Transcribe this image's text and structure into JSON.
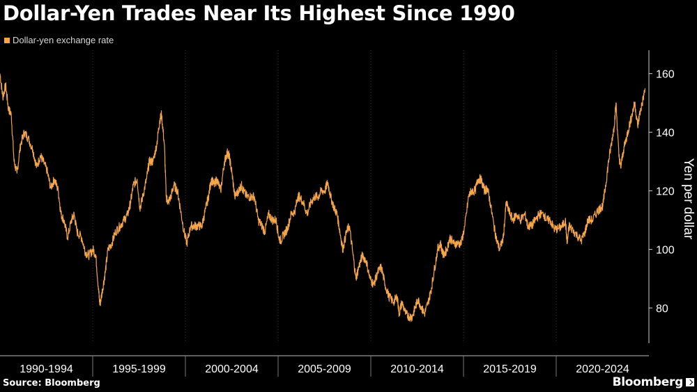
{
  "title": "Dollar-Yen Trades Near Its Highest Since 1990",
  "legend": {
    "label": "Dollar-yen exchange rate"
  },
  "source": "Source: Bloomberg",
  "brand": "Bloomberg",
  "colors": {
    "series": "#f5a54a",
    "background": "#000000",
    "grid": "#3a3a3a",
    "axis_text": "#ffffff"
  },
  "chart_data": {
    "type": "line",
    "ylabel": "Yen per dollar",
    "xlabel": "",
    "ylim": [
      68,
      168
    ],
    "yticks": [
      80,
      100,
      120,
      140,
      160
    ],
    "xlim": [
      1990.0,
      2024.55
    ],
    "x_categories": [
      "1990-1994",
      "1995-1999",
      "2000-2004",
      "2005-2009",
      "2010-2014",
      "2015-2019",
      "2020-2024"
    ],
    "legend_position": "top-left",
    "grid": "vertical dotted",
    "series": [
      {
        "name": "Dollar-yen exchange rate",
        "points": [
          [
            1990.0,
            160
          ],
          [
            1990.15,
            152
          ],
          [
            1990.3,
            156
          ],
          [
            1990.45,
            148
          ],
          [
            1990.6,
            146
          ],
          [
            1990.75,
            130
          ],
          [
            1990.9,
            126
          ],
          [
            1991.1,
            136
          ],
          [
            1991.3,
            140
          ],
          [
            1991.5,
            138
          ],
          [
            1991.75,
            134
          ],
          [
            1991.95,
            128
          ],
          [
            1992.15,
            132
          ],
          [
            1992.3,
            130
          ],
          [
            1992.5,
            127
          ],
          [
            1992.7,
            121
          ],
          [
            1992.9,
            124
          ],
          [
            1993.1,
            120
          ],
          [
            1993.25,
            112
          ],
          [
            1993.4,
            110
          ],
          [
            1993.6,
            104
          ],
          [
            1993.8,
            110
          ],
          [
            1993.95,
            112
          ],
          [
            1994.1,
            106
          ],
          [
            1994.35,
            104
          ],
          [
            1994.55,
            99
          ],
          [
            1994.75,
            98
          ],
          [
            1994.95,
            100
          ],
          [
            1995.1,
            98
          ],
          [
            1995.25,
            86
          ],
          [
            1995.32,
            81
          ],
          [
            1995.45,
            86
          ],
          [
            1995.6,
            92
          ],
          [
            1995.75,
            100
          ],
          [
            1995.95,
            102
          ],
          [
            1996.15,
            106
          ],
          [
            1996.4,
            108
          ],
          [
            1996.6,
            110
          ],
          [
            1996.8,
            112
          ],
          [
            1996.95,
            116
          ],
          [
            1997.1,
            122
          ],
          [
            1997.3,
            124
          ],
          [
            1997.45,
            114
          ],
          [
            1997.6,
            118
          ],
          [
            1997.8,
            124
          ],
          [
            1997.95,
            130
          ],
          [
            1998.15,
            130
          ],
          [
            1998.35,
            136
          ],
          [
            1998.5,
            144
          ],
          [
            1998.6,
            146
          ],
          [
            1998.75,
            136
          ],
          [
            1998.85,
            118
          ],
          [
            1998.95,
            116
          ],
          [
            1999.1,
            118
          ],
          [
            1999.25,
            122
          ],
          [
            1999.45,
            120
          ],
          [
            1999.6,
            114
          ],
          [
            1999.8,
            106
          ],
          [
            1999.95,
            102
          ],
          [
            2000.15,
            108
          ],
          [
            2000.35,
            108
          ],
          [
            2000.55,
            108
          ],
          [
            2000.75,
            108
          ],
          [
            2000.95,
            114
          ],
          [
            2001.1,
            118
          ],
          [
            2001.25,
            124
          ],
          [
            2001.4,
            122
          ],
          [
            2001.55,
            124
          ],
          [
            2001.75,
            120
          ],
          [
            2001.95,
            130
          ],
          [
            2002.1,
            133
          ],
          [
            2002.2,
            132
          ],
          [
            2002.35,
            126
          ],
          [
            2002.5,
            118
          ],
          [
            2002.7,
            120
          ],
          [
            2002.85,
            122
          ],
          [
            2002.95,
            120
          ],
          [
            2003.15,
            118
          ],
          [
            2003.35,
            118
          ],
          [
            2003.55,
            118
          ],
          [
            2003.75,
            110
          ],
          [
            2003.95,
            108
          ],
          [
            2004.1,
            106
          ],
          [
            2004.3,
            112
          ],
          [
            2004.5,
            110
          ],
          [
            2004.7,
            110
          ],
          [
            2004.85,
            104
          ],
          [
            2004.95,
            103
          ],
          [
            2005.1,
            105
          ],
          [
            2005.3,
            107
          ],
          [
            2005.5,
            112
          ],
          [
            2005.7,
            113
          ],
          [
            2005.85,
            118
          ],
          [
            2005.95,
            118
          ],
          [
            2006.15,
            116
          ],
          [
            2006.35,
            112
          ],
          [
            2006.55,
            116
          ],
          [
            2006.75,
            118
          ],
          [
            2006.95,
            118
          ],
          [
            2007.1,
            120
          ],
          [
            2007.3,
            120
          ],
          [
            2007.45,
            123
          ],
          [
            2007.6,
            118
          ],
          [
            2007.8,
            114
          ],
          [
            2007.95,
            112
          ],
          [
            2008.1,
            106
          ],
          [
            2008.25,
            100
          ],
          [
            2008.45,
            106
          ],
          [
            2008.6,
            108
          ],
          [
            2008.8,
            98
          ],
          [
            2008.95,
            90
          ],
          [
            2009.1,
            94
          ],
          [
            2009.3,
            98
          ],
          [
            2009.5,
            96
          ],
          [
            2009.7,
            90
          ],
          [
            2009.9,
            88
          ],
          [
            2010.1,
            92
          ],
          [
            2010.3,
            94
          ],
          [
            2010.5,
            88
          ],
          [
            2010.7,
            84
          ],
          [
            2010.95,
            82
          ],
          [
            2011.15,
            84
          ],
          [
            2011.25,
            78
          ],
          [
            2011.4,
            82
          ],
          [
            2011.6,
            78
          ],
          [
            2011.8,
            77
          ],
          [
            2011.95,
            77
          ],
          [
            2012.1,
            80
          ],
          [
            2012.25,
            83
          ],
          [
            2012.45,
            80
          ],
          [
            2012.6,
            78
          ],
          [
            2012.8,
            82
          ],
          [
            2012.95,
            86
          ],
          [
            2013.1,
            92
          ],
          [
            2013.3,
            100
          ],
          [
            2013.45,
            102
          ],
          [
            2013.6,
            98
          ],
          [
            2013.8,
            100
          ],
          [
            2013.95,
            104
          ],
          [
            2014.15,
            102
          ],
          [
            2014.35,
            102
          ],
          [
            2014.55,
            102
          ],
          [
            2014.75,
            108
          ],
          [
            2014.95,
            118
          ],
          [
            2015.1,
            120
          ],
          [
            2015.3,
            120
          ],
          [
            2015.45,
            124
          ],
          [
            2015.6,
            124
          ],
          [
            2015.8,
            120
          ],
          [
            2015.95,
            121
          ],
          [
            2016.1,
            116
          ],
          [
            2016.3,
            108
          ],
          [
            2016.45,
            103
          ],
          [
            2016.6,
            100
          ],
          [
            2016.8,
            104
          ],
          [
            2016.95,
            116
          ],
          [
            2017.1,
            113
          ],
          [
            2017.3,
            110
          ],
          [
            2017.5,
            112
          ],
          [
            2017.7,
            110
          ],
          [
            2017.95,
            112
          ],
          [
            2018.1,
            108
          ],
          [
            2018.3,
            108
          ],
          [
            2018.5,
            110
          ],
          [
            2018.7,
            112
          ],
          [
            2018.95,
            112
          ],
          [
            2019.1,
            110
          ],
          [
            2019.3,
            110
          ],
          [
            2019.5,
            107
          ],
          [
            2019.7,
            107
          ],
          [
            2019.95,
            108
          ],
          [
            2020.1,
            110
          ],
          [
            2020.2,
            102
          ],
          [
            2020.3,
            108
          ],
          [
            2020.45,
            107
          ],
          [
            2020.7,
            105
          ],
          [
            2020.95,
            103
          ],
          [
            2021.15,
            106
          ],
          [
            2021.3,
            110
          ],
          [
            2021.55,
            110
          ],
          [
            2021.8,
            113
          ],
          [
            2021.95,
            114
          ],
          [
            2022.1,
            115
          ],
          [
            2022.25,
            122
          ],
          [
            2022.4,
            130
          ],
          [
            2022.55,
            136
          ],
          [
            2022.7,
            142
          ],
          [
            2022.8,
            150
          ],
          [
            2022.95,
            132
          ],
          [
            2023.05,
            128
          ],
          [
            2023.2,
            134
          ],
          [
            2023.35,
            138
          ],
          [
            2023.5,
            142
          ],
          [
            2023.65,
            146
          ],
          [
            2023.8,
            150
          ],
          [
            2023.95,
            142
          ],
          [
            2024.05,
            146
          ],
          [
            2024.2,
            150
          ],
          [
            2024.35,
            155
          ]
        ]
      }
    ]
  }
}
